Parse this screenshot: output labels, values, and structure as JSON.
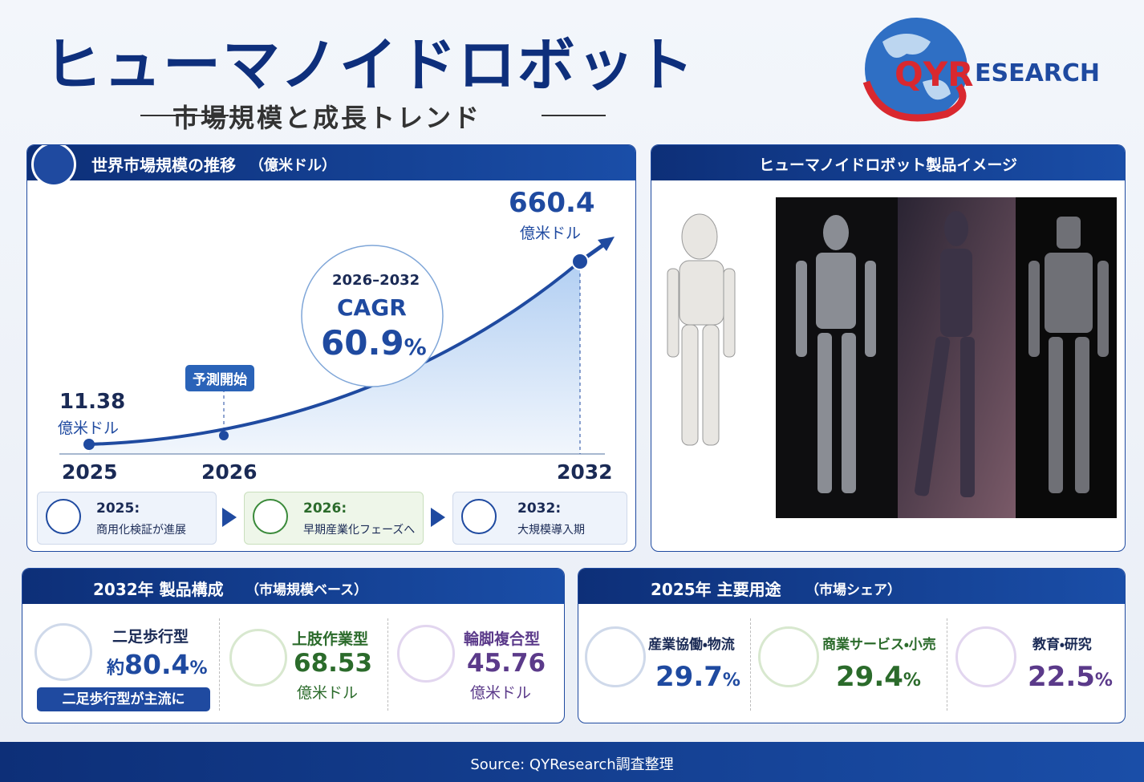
{
  "header": {
    "title": "ヒューマノイドロボット",
    "subtitle": "市場規模と成長トレンド",
    "logo": [
      "QYR",
      "ESEARCH"
    ]
  },
  "market": {
    "title": "世界市場規模の推移",
    "unit_note": "（億米ドル）",
    "start": {
      "year": "2025",
      "value": "11.38",
      "unit": "億米ドル"
    },
    "forecast": {
      "year": "2026",
      "label": "予測開始"
    },
    "end": {
      "year": "2032",
      "value": "660.4",
      "unit": "億米ドル"
    },
    "cagr": {
      "period": "2026–2032",
      "label": "CAGR",
      "value": "60.9",
      "unit": "%"
    },
    "milestones": [
      {
        "year": "2025:",
        "text": "商用化検証が進展"
      },
      {
        "year": "2026:",
        "text": "早期産業化フェーズへ"
      },
      {
        "year": "2032:",
        "text": "大規模導入期"
      }
    ]
  },
  "products": {
    "title": "ヒューマノイドロボット製品イメージ"
  },
  "composition": {
    "title": "2032年 製品構成",
    "note": "（市場規模ベース）",
    "items": [
      {
        "name": "二足歩行型",
        "prefix": "約",
        "value": "80.4",
        "unit": "%",
        "badge": "二足歩行型が主流に"
      },
      {
        "name": "上肢作業型",
        "value": "68.53",
        "unit": "億米ドル"
      },
      {
        "name": "輪脚複合型",
        "value": "45.76",
        "unit": "億米ドル"
      }
    ]
  },
  "applications": {
    "title": "2025年 主要用途",
    "note": "（市場シェア）",
    "items": [
      {
        "name": "産業協働・物流",
        "value": "29.7",
        "unit": "%"
      },
      {
        "name": "商業サービス・小売",
        "value": "29.4",
        "unit": "%"
      },
      {
        "name": "教育・研究",
        "value": "22.5",
        "unit": "%"
      }
    ]
  },
  "footer": {
    "source": "Source: QYResearch調査整理"
  }
}
